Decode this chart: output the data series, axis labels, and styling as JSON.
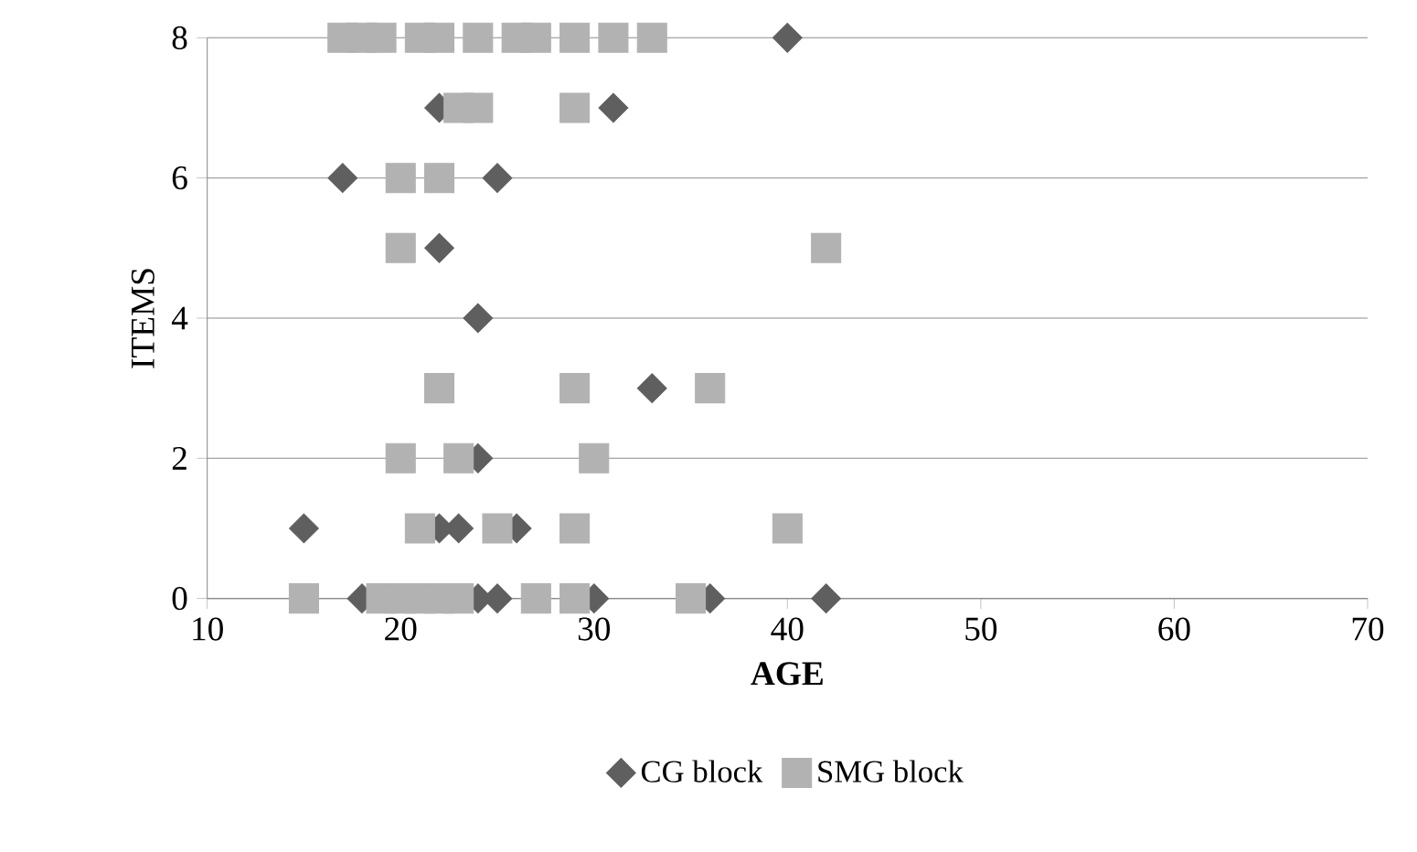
{
  "chart_data": {
    "type": "scatter",
    "xlabel": "AGE",
    "ylabel": "ITEMS",
    "xlim": [
      10,
      70
    ],
    "xticks": [
      10,
      20,
      30,
      40,
      50,
      60,
      70
    ],
    "ylim": [
      0,
      8
    ],
    "yticks": [
      0,
      2,
      4,
      6,
      8
    ],
    "grid": "y",
    "legend": "bottom",
    "series": [
      {
        "name": "CG block",
        "color": "#5f5f5f",
        "marker": "diamond",
        "x": [
          40,
          22,
          31,
          17,
          25,
          22,
          24,
          33,
          24,
          15,
          22,
          23,
          26,
          18,
          24,
          25,
          30,
          36,
          42
        ],
        "values": [
          8,
          7,
          7,
          6,
          6,
          5,
          4,
          3,
          2,
          1,
          1,
          1,
          1,
          0,
          0,
          0,
          0,
          0,
          0
        ]
      },
      {
        "name": "SMG block",
        "color": "#b2b2b2",
        "marker": "square",
        "x": [
          17,
          18,
          19,
          21,
          22,
          24,
          26,
          27,
          29,
          31,
          33,
          23,
          24,
          29,
          20,
          22,
          20,
          42,
          22,
          29,
          36,
          20,
          23,
          30,
          21,
          25,
          29,
          40,
          15,
          19,
          20,
          21,
          22,
          23,
          27,
          29,
          35
        ],
        "values": [
          8,
          8,
          8,
          8,
          8,
          8,
          8,
          8,
          8,
          8,
          8,
          7,
          7,
          7,
          6,
          6,
          5,
          5,
          3,
          3,
          3,
          2,
          2,
          2,
          1,
          1,
          1,
          1,
          0,
          0,
          0,
          0,
          0,
          0,
          0,
          0,
          0
        ]
      }
    ]
  }
}
